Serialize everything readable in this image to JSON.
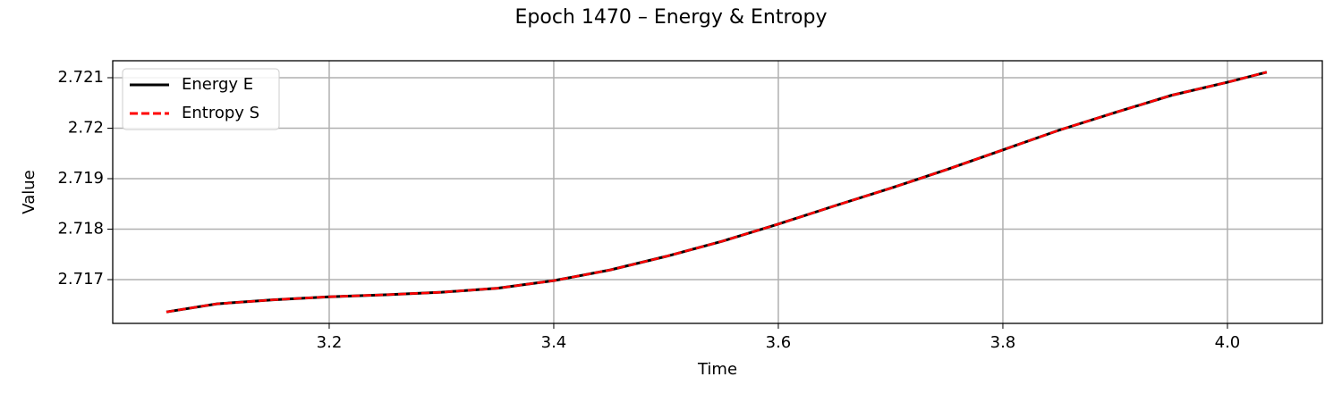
{
  "chart_data": {
    "type": "line",
    "title": "Epoch 1470 – Energy & Entropy",
    "x_label": "Time",
    "y_label": "Value",
    "x": [
      3.055,
      3.1,
      3.15,
      3.2,
      3.25,
      3.3,
      3.35,
      3.4,
      3.45,
      3.5,
      3.55,
      3.6,
      3.65,
      3.7,
      3.75,
      3.8,
      3.85,
      3.9,
      3.95,
      4.0,
      4.035
    ],
    "series": [
      {
        "name": "Energy E",
        "color": "#000000",
        "style": "solid",
        "values": [
          2.71636,
          2.71652,
          2.7166,
          2.71666,
          2.7167,
          2.71675,
          2.71683,
          2.71698,
          2.71719,
          2.71746,
          2.71776,
          2.7181,
          2.71846,
          2.71881,
          2.71918,
          2.71957,
          2.71996,
          2.72031,
          2.72065,
          2.72091,
          2.72111
        ]
      },
      {
        "name": "Entropy S",
        "color": "#ff0000",
        "style": "dashed",
        "values": [
          2.71636,
          2.71652,
          2.7166,
          2.71666,
          2.7167,
          2.71675,
          2.71683,
          2.71698,
          2.71719,
          2.71746,
          2.71776,
          2.7181,
          2.71846,
          2.71881,
          2.71918,
          2.71957,
          2.71996,
          2.72031,
          2.72065,
          2.72091,
          2.72111
        ]
      }
    ],
    "xlim": [
      3.0072,
      4.0845
    ],
    "ylim": [
      2.716133,
      2.721336
    ],
    "xticks": [
      3.2,
      3.4,
      3.6,
      3.8,
      {
        "value": 4,
        "label": "4.0"
      }
    ],
    "yticks": [
      2.717,
      2.718,
      2.719,
      2.72,
      2.721
    ],
    "grid": true,
    "legend": "upper-left"
  }
}
